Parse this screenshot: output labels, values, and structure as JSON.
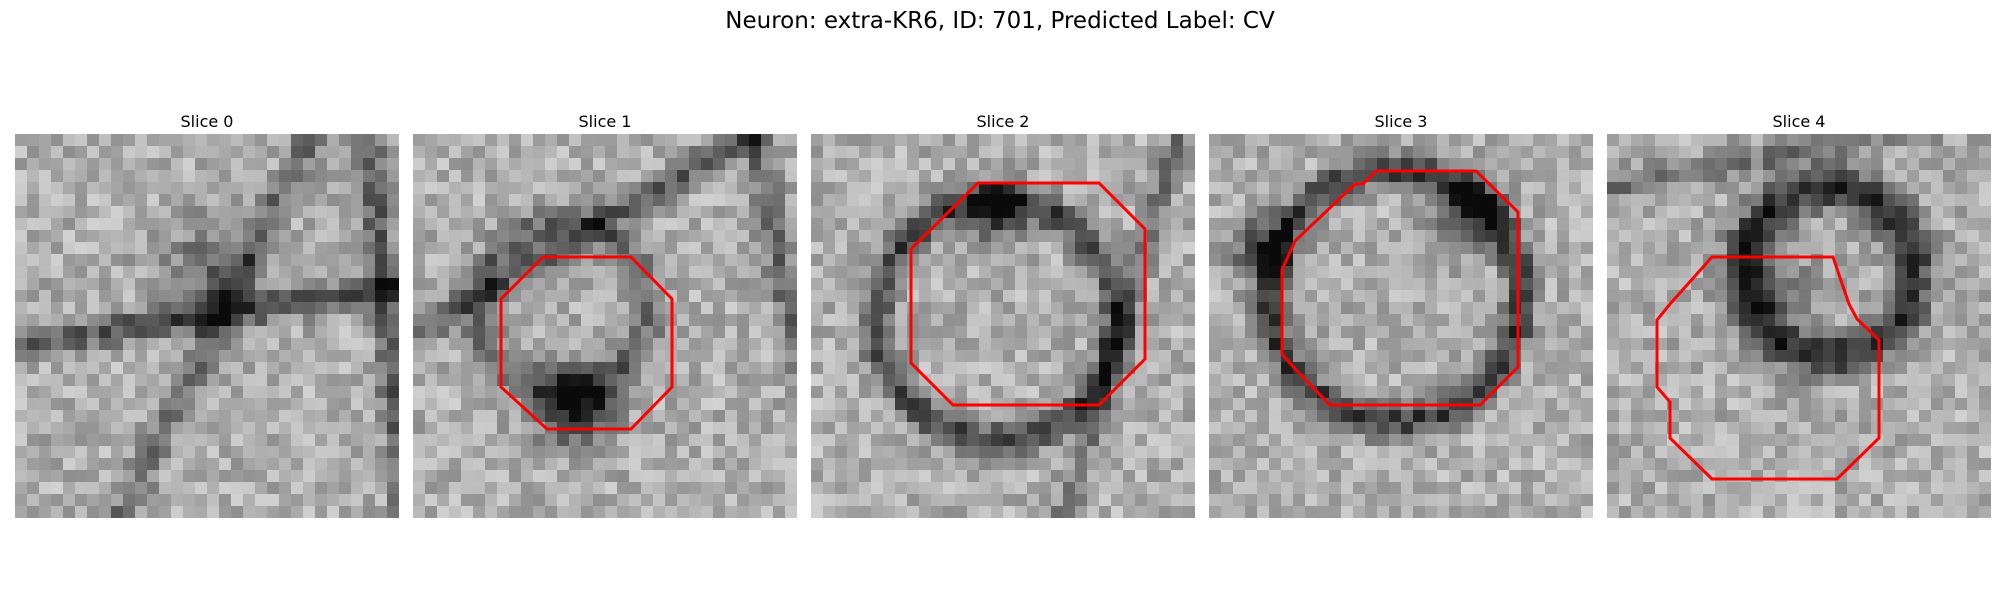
{
  "figure": {
    "title": "Neuron: extra-KR6, ID: 701, Predicted Label: CV",
    "outline_color": "#ff0000"
  },
  "panels": [
    {
      "title": "Slice 0",
      "has_outline": false
    },
    {
      "title": "Slice 1",
      "has_outline": true
    },
    {
      "title": "Slice 2",
      "has_outline": true
    },
    {
      "title": "Slice 3",
      "has_outline": true
    },
    {
      "title": "Slice 4",
      "has_outline": true
    }
  ]
}
